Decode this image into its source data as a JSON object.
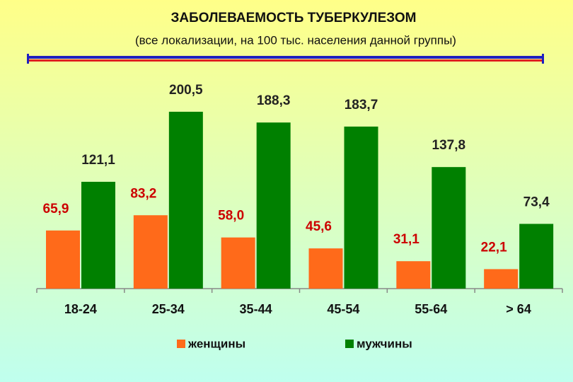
{
  "chart_data": {
    "type": "bar",
    "title": "ЗАБОЛЕВАЕМОСТЬ ТУБЕРКУЛЕЗОМ",
    "subtitle": "(все локализации, на 100 тыс. населения данной группы)",
    "categories": [
      "18-24",
      "25-34",
      "35-44",
      "45-54",
      "55-64",
      "> 64"
    ],
    "series": [
      {
        "name": "женщины",
        "color": "#ff6a1a",
        "label_color": "#cc0000",
        "values": [
          65.9,
          83.2,
          58.0,
          45.6,
          31.1,
          22.1
        ],
        "value_labels": [
          "65,9",
          "83,2",
          "58,0",
          "45,6",
          "31,1",
          "22,1"
        ]
      },
      {
        "name": "мужчины",
        "color": "#008000",
        "label_color": "#222222",
        "values": [
          121.1,
          200.5,
          188.3,
          183.7,
          137.8,
          73.4
        ],
        "value_labels": [
          "121,1",
          "200,5",
          "188,3",
          "183,7",
          "137,8",
          "73,4"
        ]
      }
    ]
  }
}
